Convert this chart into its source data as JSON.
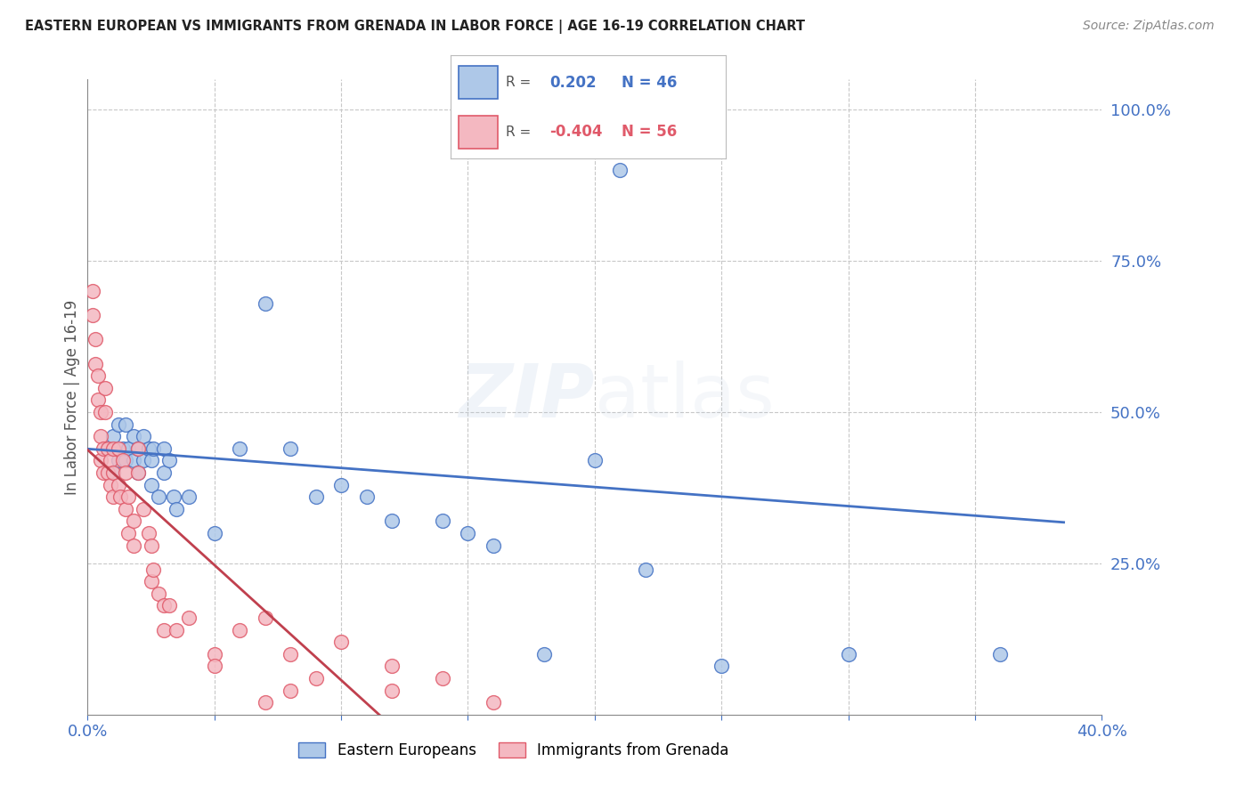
{
  "title": "EASTERN EUROPEAN VS IMMIGRANTS FROM GRENADA IN LABOR FORCE | AGE 16-19 CORRELATION CHART",
  "source": "Source: ZipAtlas.com",
  "ylabel": "In Labor Force | Age 16-19",
  "watermark": "ZIPatlas",
  "blue_label": "Eastern Europeans",
  "pink_label": "Immigrants from Grenada",
  "blue_color": "#aec8e8",
  "pink_color": "#f4b8c1",
  "blue_edge_color": "#4472c4",
  "pink_edge_color": "#e05a6a",
  "blue_line_color": "#4472c4",
  "pink_line_color": "#c0404e",
  "axis_color": "#4472c4",
  "tick_color": "#4472c4",
  "background_color": "#ffffff",
  "grid_color": "#c8c8c8",
  "xlim": [
    0.0,
    0.4
  ],
  "ylim": [
    0.0,
    1.05
  ],
  "blue_r": "0.202",
  "blue_n": "46",
  "pink_r": "-0.404",
  "pink_n": "56",
  "blue_x": [
    0.008,
    0.01,
    0.01,
    0.012,
    0.012,
    0.014,
    0.015,
    0.015,
    0.016,
    0.018,
    0.018,
    0.02,
    0.02,
    0.022,
    0.022,
    0.024,
    0.025,
    0.025,
    0.026,
    0.028,
    0.03,
    0.03,
    0.032,
    0.034,
    0.035,
    0.04,
    0.05,
    0.06,
    0.07,
    0.08,
    0.09,
    0.1,
    0.11,
    0.12,
    0.14,
    0.15,
    0.16,
    0.18,
    0.2,
    0.22,
    0.25,
    0.3,
    0.36,
    0.205,
    0.205,
    0.21
  ],
  "blue_y": [
    0.44,
    0.46,
    0.4,
    0.48,
    0.42,
    0.44,
    0.48,
    0.42,
    0.44,
    0.46,
    0.42,
    0.44,
    0.4,
    0.46,
    0.42,
    0.44,
    0.42,
    0.38,
    0.44,
    0.36,
    0.44,
    0.4,
    0.42,
    0.36,
    0.34,
    0.36,
    0.3,
    0.44,
    0.68,
    0.44,
    0.36,
    0.38,
    0.36,
    0.32,
    0.32,
    0.3,
    0.28,
    0.1,
    0.42,
    0.24,
    0.08,
    0.1,
    0.1,
    1.0,
    0.94,
    0.9
  ],
  "pink_x": [
    0.002,
    0.002,
    0.003,
    0.003,
    0.004,
    0.004,
    0.005,
    0.005,
    0.005,
    0.006,
    0.006,
    0.007,
    0.007,
    0.008,
    0.008,
    0.009,
    0.009,
    0.01,
    0.01,
    0.01,
    0.012,
    0.012,
    0.013,
    0.014,
    0.015,
    0.015,
    0.016,
    0.016,
    0.018,
    0.018,
    0.02,
    0.02,
    0.022,
    0.024,
    0.025,
    0.025,
    0.026,
    0.028,
    0.03,
    0.03,
    0.032,
    0.035,
    0.04,
    0.05,
    0.06,
    0.07,
    0.08,
    0.09,
    0.1,
    0.12,
    0.12,
    0.14,
    0.16,
    0.07,
    0.08,
    0.05
  ],
  "pink_y": [
    0.7,
    0.66,
    0.62,
    0.58,
    0.56,
    0.52,
    0.5,
    0.46,
    0.42,
    0.44,
    0.4,
    0.54,
    0.5,
    0.44,
    0.4,
    0.42,
    0.38,
    0.44,
    0.4,
    0.36,
    0.44,
    0.38,
    0.36,
    0.42,
    0.4,
    0.34,
    0.36,
    0.3,
    0.32,
    0.28,
    0.44,
    0.4,
    0.34,
    0.3,
    0.28,
    0.22,
    0.24,
    0.2,
    0.18,
    0.14,
    0.18,
    0.14,
    0.16,
    0.1,
    0.14,
    0.16,
    0.1,
    0.06,
    0.12,
    0.04,
    0.08,
    0.06,
    0.02,
    0.02,
    0.04,
    0.08
  ]
}
